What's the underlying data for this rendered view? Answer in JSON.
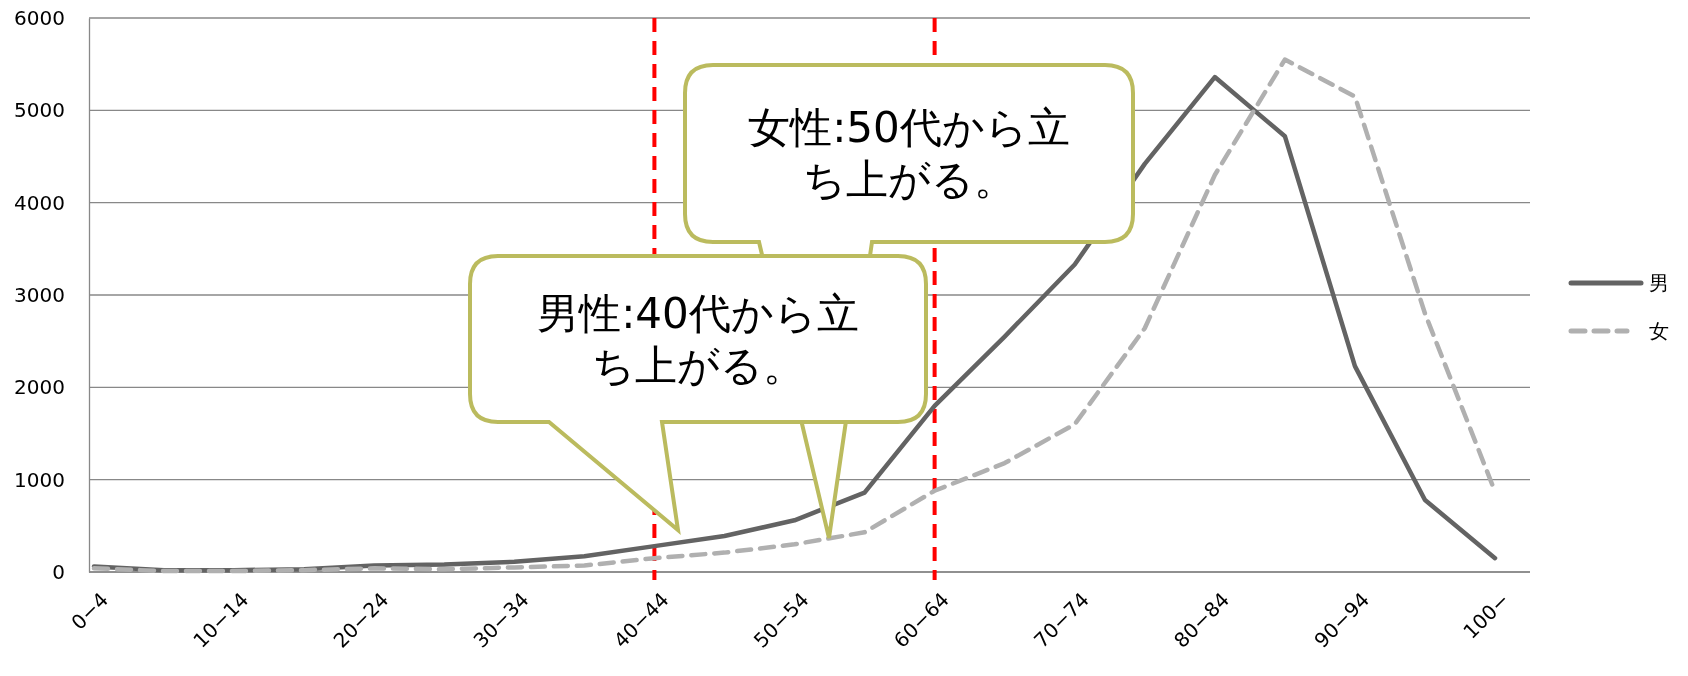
{
  "chart_data": {
    "type": "line",
    "categories": [
      "0−4",
      null,
      "10−14",
      null,
      "20−24",
      null,
      "30−34",
      null,
      "40−44",
      null,
      "50−54",
      null,
      "60−64",
      null,
      "70−74",
      null,
      "80−84",
      null,
      "90−94",
      null,
      "100−"
    ],
    "ylim": [
      0,
      6000
    ],
    "yticks": [
      0,
      1000,
      2000,
      3000,
      4000,
      5000,
      6000
    ],
    "grid": "y",
    "legend": "right",
    "series": [
      {
        "name": "男",
        "color": "#636363",
        "line_style": "solid",
        "values": [
          60,
          20,
          20,
          30,
          70,
          80,
          110,
          170,
          280,
          390,
          560,
          860,
          1800,
          2550,
          3330,
          4420,
          5360,
          4720,
          2230,
          780,
          150
        ]
      },
      {
        "name": "女",
        "color": "#b0b0b0",
        "line_style": "dashed",
        "values": [
          40,
          10,
          10,
          20,
          40,
          30,
          50,
          70,
          150,
          210,
          300,
          430,
          880,
          1180,
          1600,
          2640,
          4300,
          5550,
          5150,
          2800,
          870
        ]
      }
    ],
    "ref_lines": [
      {
        "axis": "x",
        "value": "40−44",
        "color": "#ff0000",
        "line_style": "dashed"
      },
      {
        "axis": "x",
        "value": "60−64",
        "color": "#ff0000",
        "line_style": "dashed"
      }
    ],
    "annotations": [
      "女性:50代から立ち上がる。",
      "男性:40代から立ち上がる。"
    ]
  }
}
